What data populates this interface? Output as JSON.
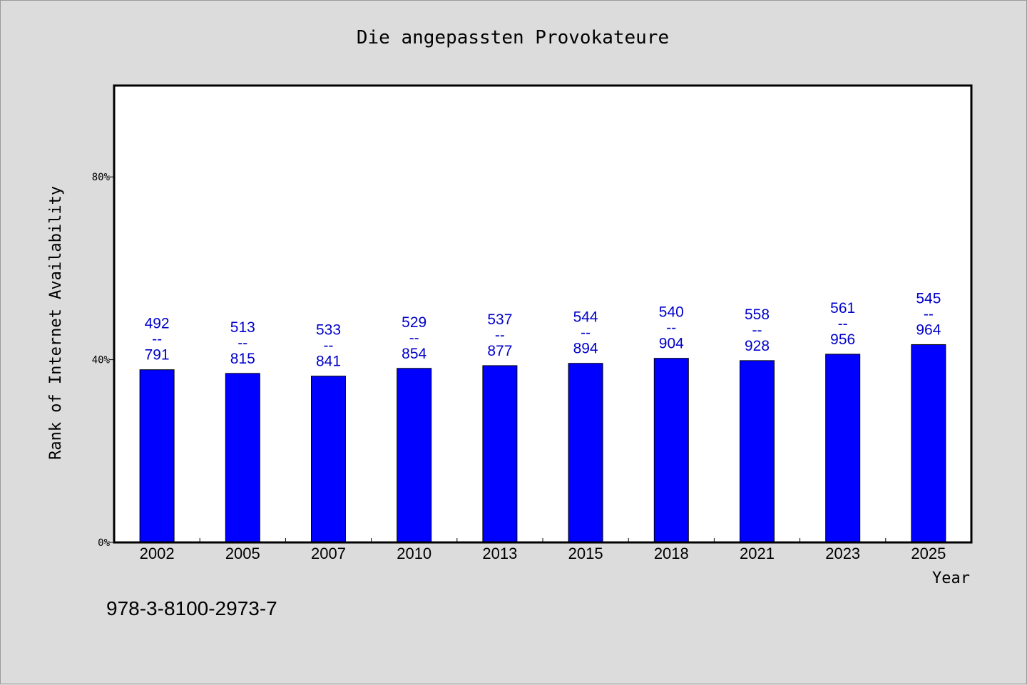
{
  "chart_data": {
    "type": "bar",
    "title": "Die angepassten Provokateure",
    "xlabel": "Year",
    "ylabel": "Rank of Internet Availability",
    "categories": [
      "2002",
      "2005",
      "2007",
      "2010",
      "2013",
      "2015",
      "2018",
      "2021",
      "2023",
      "2025"
    ],
    "series": [
      {
        "values": [
          37.8,
          37.0,
          36.4,
          38.1,
          38.7,
          39.2,
          40.3,
          39.8,
          41.2,
          43.3
        ],
        "color": "#0000ff",
        "labels": [
          [
            "492",
            "--",
            "791"
          ],
          [
            "513",
            "--",
            "815"
          ],
          [
            "533",
            "--",
            "841"
          ],
          [
            "529",
            "--",
            "854"
          ],
          [
            "537",
            "--",
            "877"
          ],
          [
            "544",
            "--",
            "894"
          ],
          [
            "540",
            "--",
            "904"
          ],
          [
            "558",
            "--",
            "928"
          ],
          [
            "561",
            "--",
            "956"
          ],
          [
            "545",
            "--",
            "964"
          ]
        ]
      }
    ],
    "ylim": [
      0,
      100
    ],
    "yticks": [
      0,
      40,
      80
    ],
    "ytick_labels": [
      "0%",
      "40%",
      "80%"
    ],
    "grid": false,
    "label_color": "#0000cc",
    "footnote": "978-3-8100-2973-7"
  }
}
